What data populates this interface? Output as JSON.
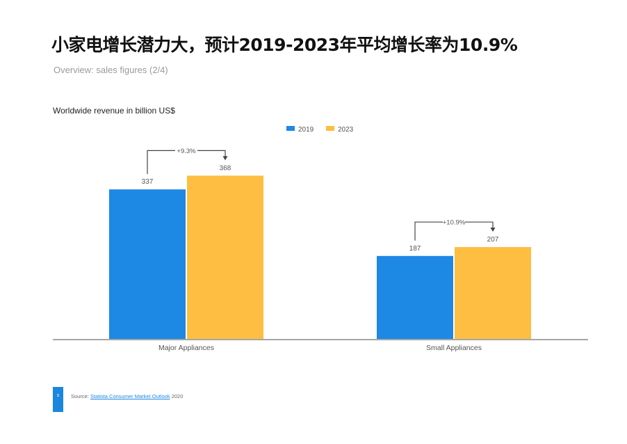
{
  "title": "小家电增长潜力大，预计2019-2023年平均增长率为10.9%",
  "subtitle": "Overview: sales figures (2/4)",
  "footer": {
    "badge": "s",
    "source_label": "Source:",
    "source_link": "Statista Consumer Market Outlook",
    "source_year": "2020"
  },
  "colors": {
    "series_2019": "#1E88E5",
    "series_2023": "#FDBE41",
    "axis": "#888888"
  },
  "chart_data": {
    "type": "bar",
    "title": "Worldwide revenue in billion US$",
    "categories": [
      "Major Appliances",
      "Small Appliances"
    ],
    "series": [
      {
        "name": "2019",
        "values": [
          337,
          187
        ]
      },
      {
        "name": "2023",
        "values": [
          368,
          207
        ]
      }
    ],
    "annotations": [
      "+9.3%",
      "+10.9%"
    ],
    "legend_position": "top-center",
    "grid": false,
    "ylim": [
      0,
      420
    ]
  }
}
